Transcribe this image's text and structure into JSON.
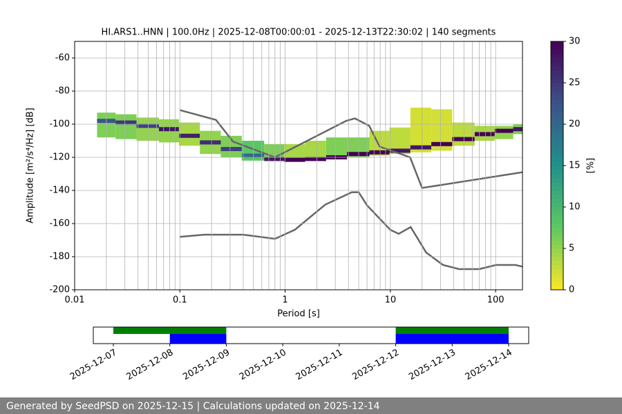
{
  "chart_data": [
    {
      "type": "ppsd",
      "title": "HI.ARS1..HNN | 100.0Hz | 2025-12-08T00:00:01 - 2025-12-13T22:30:02 | 140 segments",
      "x_label": "Period [s]",
      "y_label": "Amplitude [m²/s⁴/Hz] [dB]",
      "log_x": true,
      "grid": true,
      "xlim": [
        0.01,
        180
      ],
      "ylim": [
        -200,
        -50
      ],
      "xticks": [
        0.01,
        0.1,
        1,
        10,
        100
      ],
      "xminor": [
        0.02,
        0.03,
        0.04,
        0.05,
        0.06,
        0.07,
        0.08,
        0.09,
        0.2,
        0.3,
        0.4,
        0.5,
        0.6,
        0.7,
        0.8,
        0.9,
        2,
        3,
        4,
        5,
        6,
        7,
        8,
        9,
        20,
        30,
        40,
        50,
        60,
        70,
        80,
        90
      ],
      "yticks": [
        -200,
        -180,
        -160,
        -140,
        -120,
        -100,
        -80,
        -60
      ],
      "periods": [
        0.02,
        0.03,
        0.05,
        0.08,
        0.12,
        0.2,
        0.3,
        0.5,
        0.8,
        1.2,
        2,
        3,
        5,
        8,
        12,
        20,
        30,
        50,
        80,
        120,
        180
      ],
      "mode": [
        -98,
        -99,
        -101,
        -103,
        -107,
        -111,
        -115,
        -119,
        -121,
        -121.5,
        -121,
        -120,
        -118,
        -117,
        -116,
        -114,
        -112,
        -109,
        -106,
        -104,
        -103
      ],
      "mode_percent": [
        22,
        25,
        24,
        28,
        27,
        26,
        24,
        20,
        28,
        30,
        30,
        30,
        30,
        30,
        28,
        28,
        30,
        30,
        30,
        30,
        28
      ],
      "low": [
        -108,
        -109,
        -110,
        -111,
        -113,
        -118,
        -120,
        -122,
        -122,
        -122,
        -122,
        -121,
        -120,
        -119,
        -118,
        -117,
        -116,
        -113,
        -110,
        -109,
        -106
      ],
      "high": [
        -93,
        -94,
        -96,
        -97,
        -99,
        -104,
        -107,
        -110,
        -112,
        -112,
        -110,
        -108,
        -108,
        -104,
        -102,
        -90,
        -91,
        -99,
        -101,
        -101,
        -100
      ],
      "band_percent": [
        6,
        6,
        5,
        5,
        4,
        5,
        6,
        8,
        6,
        4,
        4,
        6,
        6,
        3,
        3,
        2,
        2,
        3,
        4,
        5,
        6
      ],
      "nhnm": {
        "color": "#666666",
        "x": [
          0.1,
          0.22,
          0.32,
          0.8,
          3.8,
          4.6,
          6.3,
          7.9,
          15.4,
          20,
          180
        ],
        "values": [
          -91.5,
          -97.4,
          -110.5,
          -120,
          -98,
          -96.5,
          -101,
          -113.5,
          -120,
          -138.5,
          -129
        ]
      },
      "nlnm": {
        "color": "#666666",
        "x": [
          0.1,
          0.17,
          0.4,
          0.8,
          1.24,
          2.4,
          4.3,
          5,
          6,
          10,
          12,
          15.6,
          21.9,
          31.6,
          45,
          70,
          101,
          154,
          180
        ],
        "values": [
          -168,
          -166.7,
          -166.7,
          -169.2,
          -163.7,
          -148.6,
          -141.1,
          -141.1,
          -149,
          -163.8,
          -166.2,
          -162.1,
          -177.5,
          -185,
          -187.5,
          -187.5,
          -185,
          -185,
          -186
        ]
      },
      "colorbar": {
        "label": "[%]",
        "lim": [
          0,
          30
        ],
        "ticks": [
          0,
          5,
          10,
          15,
          20,
          25,
          30
        ],
        "cmap": [
          "#fde725",
          "#5ec962",
          "#21918c",
          "#3b528b",
          "#440154"
        ]
      }
    },
    {
      "type": "timeline",
      "xlim": [
        -0.355,
        7.355
      ],
      "xticks": [
        {
          "value": 0,
          "label": "2025-12-07"
        },
        {
          "value": 1,
          "label": "2025-12-08"
        },
        {
          "value": 2,
          "label": "2025-12-09"
        },
        {
          "value": 3,
          "label": "2025-12-10"
        },
        {
          "value": 4,
          "label": "2025-12-11"
        },
        {
          "value": 5,
          "label": "2025-12-12"
        },
        {
          "value": 6,
          "label": "2025-12-13"
        },
        {
          "value": 7,
          "label": "2025-12-14"
        }
      ],
      "data_spans": {
        "color": "#008000",
        "spans": [
          [
            0,
            2
          ],
          [
            5,
            7
          ]
        ]
      },
      "used_spans": {
        "color": "#0000ff",
        "spans": [
          [
            1,
            2
          ],
          [
            5,
            7
          ]
        ]
      }
    }
  ],
  "footer": "Generated by SeedPSD on 2025-12-15 | Calculations updated on 2025-12-14"
}
